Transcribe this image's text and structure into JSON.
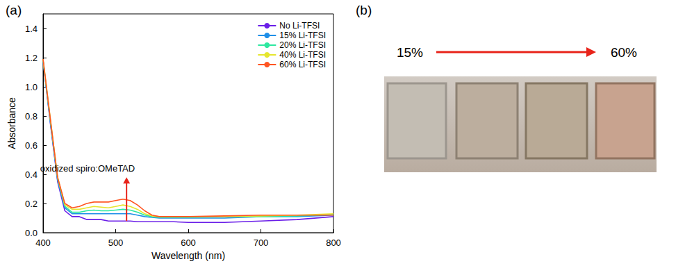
{
  "chart_data": {
    "type": "line",
    "x_label": "Wavelength (nm)",
    "y_label": "Absorbance",
    "x": [
      400,
      410,
      420,
      430,
      440,
      450,
      460,
      470,
      480,
      490,
      500,
      510,
      520,
      530,
      540,
      550,
      560,
      580,
      600,
      650,
      700,
      750,
      800
    ],
    "series": [
      {
        "name": "No Li-TFSI",
        "color": "#6a1ee8",
        "values": [
          1.18,
          0.75,
          0.35,
          0.15,
          0.11,
          0.11,
          0.09,
          0.09,
          0.09,
          0.08,
          0.08,
          0.08,
          0.08,
          0.075,
          0.075,
          0.075,
          0.075,
          0.075,
          0.07,
          0.07,
          0.08,
          0.09,
          0.11
        ]
      },
      {
        "name": "15% Li-TFSI",
        "color": "#1f8fe8",
        "values": [
          1.18,
          0.76,
          0.36,
          0.17,
          0.13,
          0.13,
          0.13,
          0.13,
          0.13,
          0.13,
          0.13,
          0.13,
          0.13,
          0.12,
          0.11,
          0.105,
          0.1,
          0.1,
          0.1,
          0.1,
          0.11,
          0.11,
          0.12
        ]
      },
      {
        "name": "20% Li-TFSI",
        "color": "#2ee8a0",
        "values": [
          1.18,
          0.77,
          0.37,
          0.18,
          0.14,
          0.14,
          0.15,
          0.155,
          0.15,
          0.15,
          0.155,
          0.16,
          0.155,
          0.14,
          0.12,
          0.11,
          0.105,
          0.105,
          0.105,
          0.11,
          0.11,
          0.115,
          0.125
        ]
      },
      {
        "name": "40% Li-TFSI",
        "color": "#e6e62e",
        "values": [
          1.19,
          0.78,
          0.38,
          0.19,
          0.16,
          0.16,
          0.17,
          0.18,
          0.175,
          0.17,
          0.18,
          0.19,
          0.18,
          0.16,
          0.13,
          0.115,
          0.11,
          0.11,
          0.11,
          0.11,
          0.115,
          0.12,
          0.13
        ]
      },
      {
        "name": "60% Li-TFSI",
        "color": "#ff5522",
        "values": [
          1.19,
          0.78,
          0.38,
          0.2,
          0.17,
          0.18,
          0.2,
          0.21,
          0.21,
          0.21,
          0.22,
          0.23,
          0.22,
          0.19,
          0.15,
          0.12,
          0.11,
          0.11,
          0.11,
          0.115,
          0.12,
          0.12,
          0.12
        ]
      }
    ],
    "xlim": [
      400,
      800
    ],
    "xticks": [
      400,
      500,
      600,
      700,
      800
    ],
    "ylim": [
      0,
      1.5
    ],
    "yticks": [
      {
        "value": 0,
        "label": "0.0"
      },
      {
        "value": 0.2,
        "label": "0.2"
      },
      {
        "value": 0.4,
        "label": "0.4"
      },
      {
        "value": 0.6,
        "label": "0.6"
      },
      {
        "value": 0.8,
        "label": "0.8"
      },
      {
        "value": 1.0,
        "label": "1.0"
      },
      {
        "value": 1.2,
        "label": "1.2"
      },
      {
        "value": 1.4,
        "label": "1.4"
      }
    ],
    "annotations": [
      {
        "text": "oxidized spiro:OMeTAD",
        "x": 515,
        "y_start": 0.08,
        "y_end": 0.38,
        "color": "#e8231a"
      }
    ],
    "legend": "upper right",
    "grid": false
  },
  "figure": {
    "panel_labels": [
      "(a)",
      "(b)"
    ],
    "photo_arrow": {
      "from": "15%",
      "to": "60%",
      "color": "#e8231a"
    }
  }
}
